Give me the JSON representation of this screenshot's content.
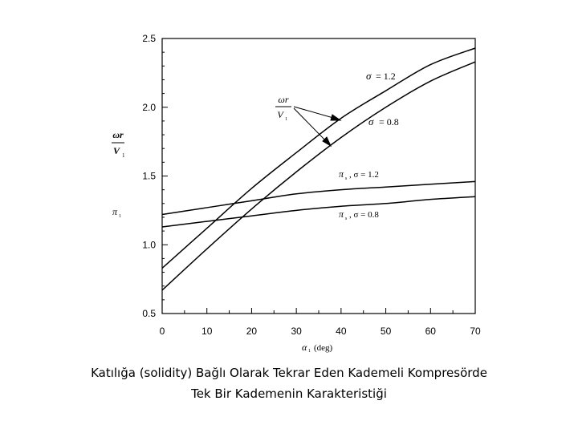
{
  "chart_data": {
    "type": "line",
    "xlabel_symbol": "α",
    "xlabel_sub": "1",
    "xlabel_unit": "(deg)",
    "ylabel_top_num": "ωr",
    "ylabel_top_den": "V",
    "ylabel_top_den_sub": "1",
    "ylabel_bottom": "π",
    "ylabel_bottom_sub": "1",
    "xlim": [
      0,
      70
    ],
    "ylim": [
      0.5,
      2.5
    ],
    "x_ticks": [
      "0",
      "10",
      "20",
      "30",
      "40",
      "50",
      "60",
      "70"
    ],
    "y_ticks": [
      "0.5",
      "1.0",
      "1.5",
      "2.0",
      "2.5"
    ],
    "x": [
      0,
      10,
      20,
      30,
      40,
      50,
      60,
      70
    ],
    "series": [
      {
        "name": "σ = 1.2",
        "values": [
          0.83,
          1.12,
          1.41,
          1.67,
          1.92,
          2.12,
          2.31,
          2.43
        ]
      },
      {
        "name": "σ = 0.8",
        "values": [
          0.67,
          0.97,
          1.26,
          1.53,
          1.78,
          2.0,
          2.19,
          2.33
        ]
      },
      {
        "name": "πs , σ = 1.2",
        "values": [
          1.22,
          1.27,
          1.32,
          1.37,
          1.4,
          1.42,
          1.44,
          1.46
        ]
      },
      {
        "name": "πs , σ = 0.8",
        "values": [
          1.13,
          1.17,
          1.21,
          1.25,
          1.28,
          1.3,
          1.33,
          1.35
        ]
      }
    ],
    "annotations": {
      "sigma_high": {
        "symbol": "σ",
        "rest": "= 1.2"
      },
      "sigma_low": {
        "symbol": "σ",
        "rest": "= 0.8"
      },
      "pi_high": {
        "symbol": "π",
        "sub": "s",
        "rest": ", σ = 1.2"
      },
      "pi_low": {
        "symbol": "π",
        "sub": "s",
        "rest": ", σ = 0.8"
      },
      "ratio_num": "ωr",
      "ratio_den": "V",
      "ratio_den_sub": "1"
    },
    "grid": false,
    "legend": "none"
  },
  "caption": {
    "line1": "Katılığa (solidity) Bağlı Olarak Tekrar Eden Kademeli Kompresörde",
    "line2": "Tek Bir Kademenin Karakteristiği"
  }
}
